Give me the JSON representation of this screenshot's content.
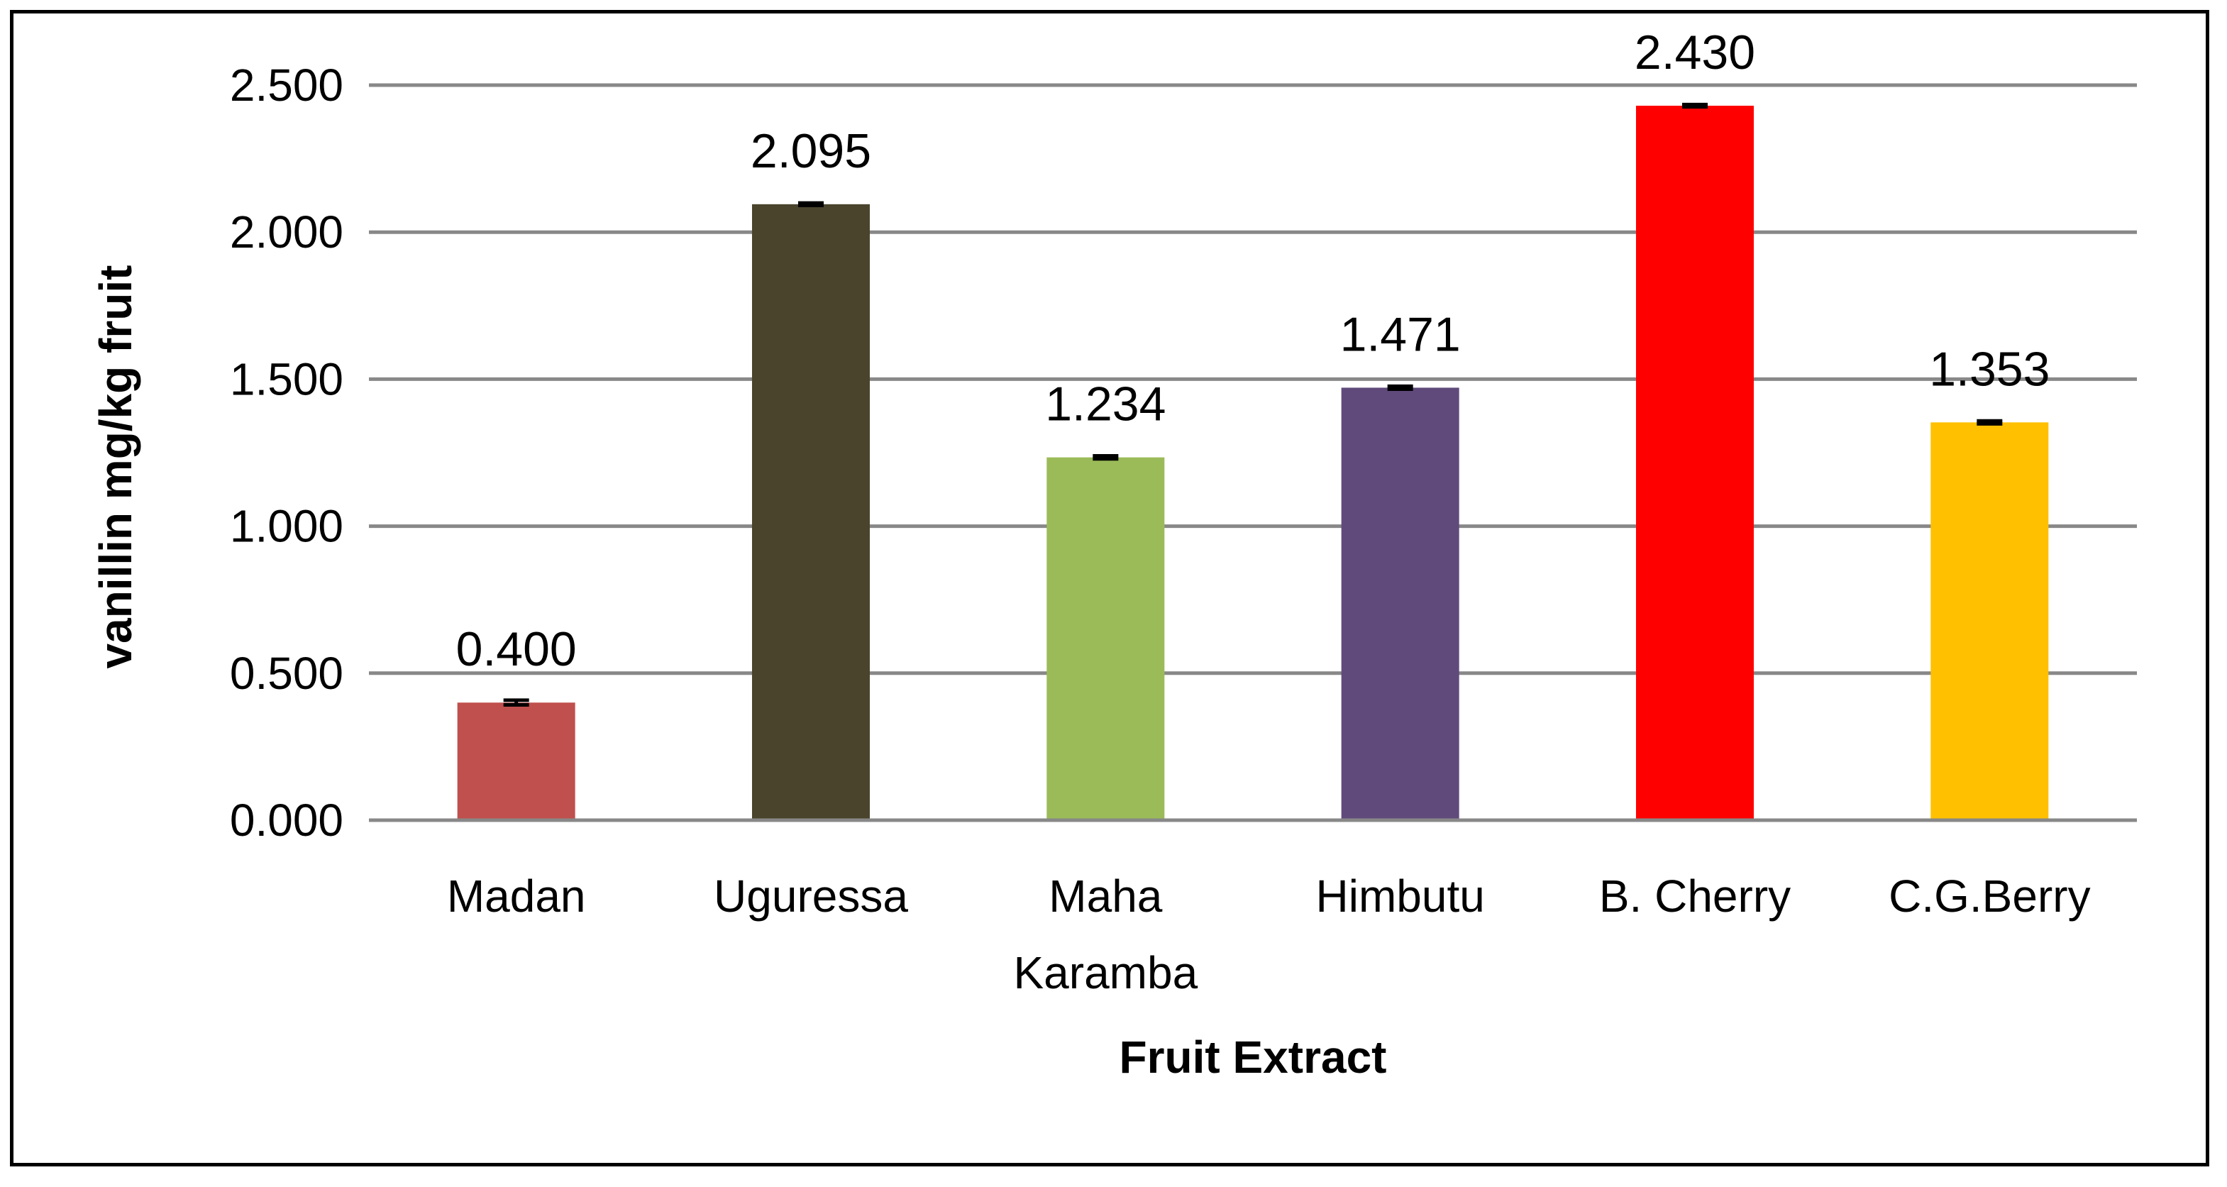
{
  "chart_data": {
    "type": "bar",
    "title": "",
    "xlabel": "Fruit Extract",
    "ylabel": "vanillin mg/kg fruit",
    "categories": [
      [
        "Madan"
      ],
      [
        "Uguressa"
      ],
      [
        "Maha",
        "Karamba"
      ],
      [
        "Himbutu"
      ],
      [
        "B. Cherry"
      ],
      [
        "C.G.Berry"
      ]
    ],
    "values": [
      0.4,
      2.095,
      1.234,
      1.471,
      2.43,
      1.353
    ],
    "data_labels": [
      "0.400",
      "2.095",
      "1.234",
      "1.471",
      "2.430",
      "1.353"
    ],
    "error": [
      0.008,
      0.004,
      0.005,
      0.005,
      0.004,
      0.005
    ],
    "colors": [
      "#C0504D",
      "#4A442D",
      "#9BBB59",
      "#604A7B",
      "#FF0000",
      "#FFC000"
    ],
    "ylim": [
      0,
      2.5
    ],
    "yticks": [
      0,
      0.5,
      1.0,
      1.5,
      2.0,
      2.5
    ],
    "ytick_labels": [
      "0.000",
      "0.500",
      "1.000",
      "1.500",
      "2.000",
      "2.500"
    ],
    "grid": true,
    "grid_color": "#888888",
    "legend": "none"
  }
}
